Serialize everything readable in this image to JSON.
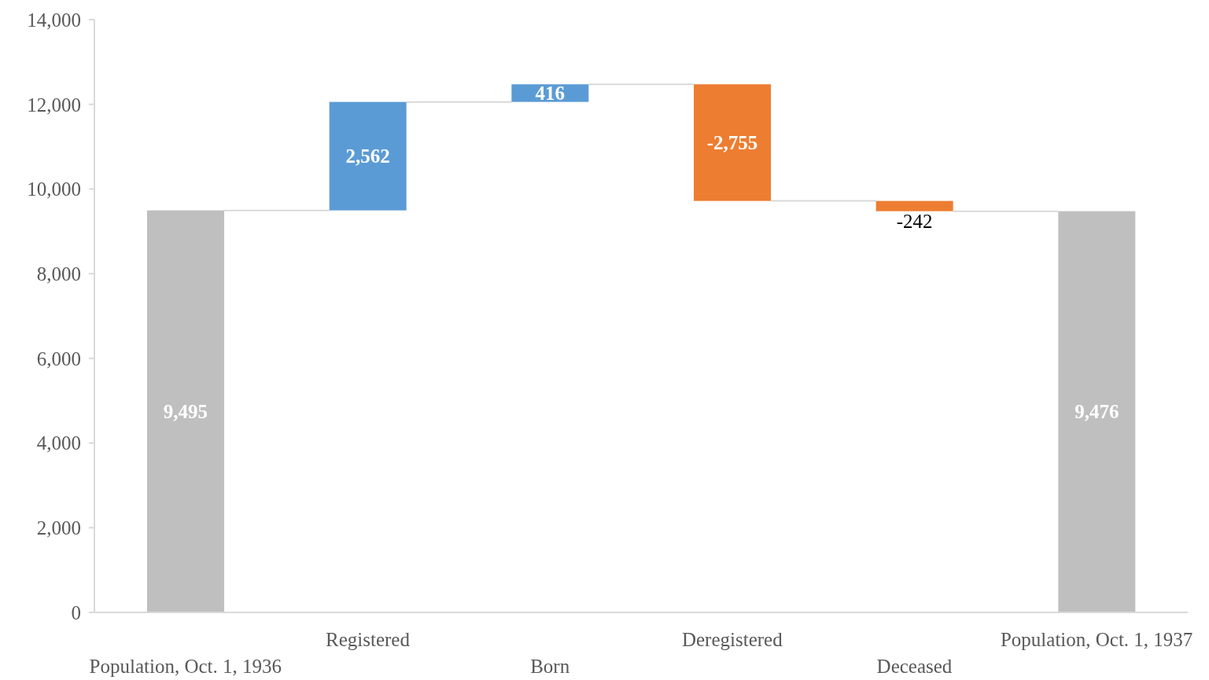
{
  "chart_data": {
    "type": "bar",
    "categories": [
      "Population, Oct. 1, 1936",
      "Registered",
      "Born",
      "Deregistered",
      "Deceased",
      "Population, Oct. 1, 1937"
    ],
    "values": [
      9495,
      2562,
      416,
      -2755,
      -242,
      9476
    ],
    "base": [
      0,
      9495,
      12057,
      12473,
      9718,
      0
    ],
    "value_labels": [
      "9,495",
      "2,562",
      "416",
      "-2,755",
      "-242",
      "9,476"
    ],
    "colors": [
      "#bfbfbf",
      "#5b9bd5",
      "#5b9bd5",
      "#ed7d31",
      "#ed7d31",
      "#bfbfbf"
    ],
    "ylim": [
      0,
      14000
    ],
    "yticks": [
      0,
      {
        "value": 2000,
        "label": "2,000"
      },
      {
        "value": 4000,
        "label": "4,000"
      },
      {
        "value": 6000,
        "label": "6,000"
      },
      {
        "value": 8000,
        "label": "8,000"
      },
      {
        "value": 10000,
        "label": "10,000"
      },
      {
        "value": 12000,
        "label": "12,000"
      },
      {
        "value": 14000,
        "label": "14,000"
      }
    ]
  }
}
